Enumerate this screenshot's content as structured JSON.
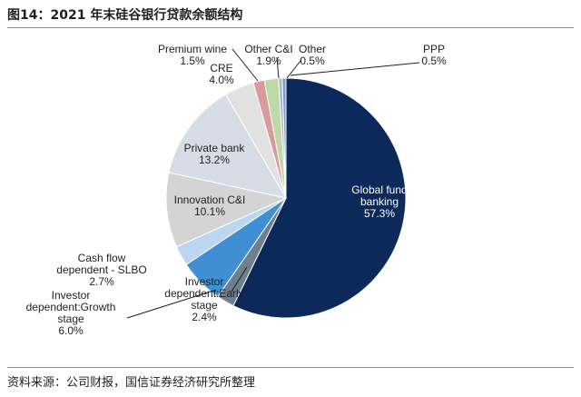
{
  "header": {
    "title": "图14：2021 年末硅谷银行贷款余额结构"
  },
  "footer": {
    "source": "资料来源：公司财报，国信证券经济研究所整理"
  },
  "chart_data": {
    "type": "pie",
    "title": "",
    "slices": [
      {
        "label": "Global fund banking",
        "value": 57.3,
        "display": "57.3%",
        "color": "#0b2a5b",
        "label_placement": "inside"
      },
      {
        "label": "Investor dependent:Early stage",
        "value": 2.4,
        "display": "2.4%",
        "color": "#6f7f8f",
        "label_placement": "outside"
      },
      {
        "label": "Investor dependent:Growth stage",
        "value": 6.0,
        "display": "6.0%",
        "color": "#3f8fd2",
        "label_placement": "outside"
      },
      {
        "label": "Cash flow dependent - SLBO",
        "value": 2.7,
        "display": "2.7%",
        "color": "#bcd6f2",
        "label_placement": "outside"
      },
      {
        "label": "Innovation C&I",
        "value": 10.1,
        "display": "10.1%",
        "color": "#d4d4d4",
        "label_placement": "inside"
      },
      {
        "label": "Private bank",
        "value": 13.2,
        "display": "13.2%",
        "color": "#d7dde7",
        "label_placement": "inside"
      },
      {
        "label": "CRE",
        "value": 4.0,
        "display": "4.0%",
        "color": "#e2e2e2",
        "label_placement": "outside"
      },
      {
        "label": "Premium wine",
        "value": 1.5,
        "display": "1.5%",
        "color": "#d99a9a",
        "label_placement": "outside"
      },
      {
        "label": "Other C&I",
        "value": 1.9,
        "display": "1.9%",
        "color": "#bcd9a6",
        "label_placement": "outside"
      },
      {
        "label": "Other",
        "value": 0.5,
        "display": "0.5%",
        "color": "#a9b6c8",
        "label_placement": "outside"
      },
      {
        "label": "PPP",
        "value": 0.5,
        "display": "0.5%",
        "color": "#7a9ccf",
        "label_placement": "outside"
      }
    ]
  }
}
